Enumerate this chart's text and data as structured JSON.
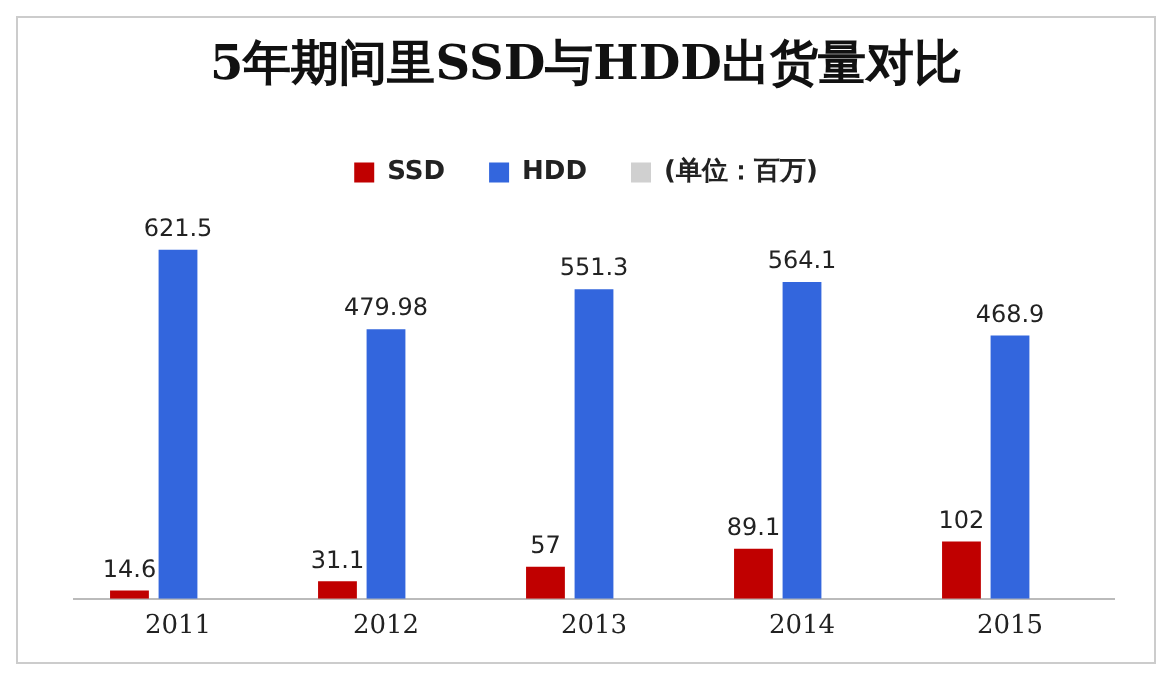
{
  "chart_data": {
    "type": "bar",
    "title": "5年期间里SSD与HDD出货量对比",
    "categories": [
      "2011",
      "2012",
      "2013",
      "2014",
      "2015"
    ],
    "series": [
      {
        "name": "SSD",
        "color": "#c00000",
        "values": [
          14.6,
          31.1,
          57,
          89.1,
          102
        ]
      },
      {
        "name": "HDD",
        "color": "#3366dd",
        "values": [
          621.5,
          479.98,
          551.3,
          564.1,
          468.9
        ]
      },
      {
        "name": "(单位：百万)",
        "color": "#d0d0d0",
        "values": [
          null,
          null,
          null,
          null,
          null
        ]
      }
    ],
    "data_labels": true,
    "legend": "top",
    "grid": false
  }
}
